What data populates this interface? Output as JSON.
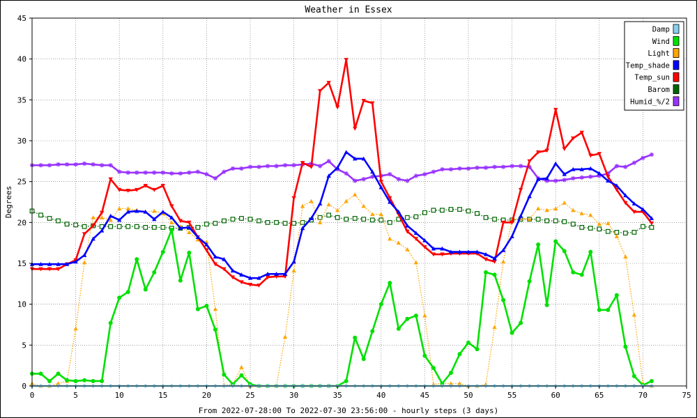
{
  "chart_data": {
    "type": "line",
    "title": "Weather in Essex",
    "xlabel": "From 2022-07-28:00 To 2022-07-30 23:56:00 - hourly steps (3 days)",
    "ylabel": "Degrees",
    "xlim": [
      0,
      75
    ],
    "ylim": [
      0,
      45
    ],
    "x_ticks": [
      0,
      5,
      10,
      15,
      20,
      25,
      30,
      35,
      40,
      45,
      50,
      55,
      60,
      65,
      70,
      75
    ],
    "y_ticks": [
      0,
      5,
      10,
      15,
      20,
      25,
      30,
      35,
      40,
      45
    ],
    "grid": true,
    "legend_position": "top-right",
    "series": [
      {
        "name": "Damp",
        "color": "#87ceeb",
        "marker": "diamond",
        "dash": "solid",
        "values": [
          0,
          0,
          0,
          0,
          0,
          0,
          0,
          0,
          0,
          0,
          0,
          0,
          0,
          0,
          0,
          0,
          0,
          0,
          0,
          0,
          0,
          0,
          0,
          0,
          0,
          0,
          0,
          0,
          0,
          0,
          0,
          0,
          0,
          0,
          0,
          0,
          0,
          0,
          0,
          0,
          0,
          0,
          0,
          0,
          0,
          0,
          0,
          0,
          0,
          0,
          0,
          0,
          0,
          0,
          0,
          0,
          0,
          0,
          0,
          0,
          0,
          0,
          0,
          0,
          0,
          0,
          0,
          0,
          0,
          0,
          0,
          0
        ]
      },
      {
        "name": "Wind",
        "color": "#00e000",
        "marker": "circle",
        "dash": "solid",
        "values": [
          1.5,
          1.5,
          0.6,
          1.5,
          0.7,
          0.6,
          0.7,
          0.6,
          0.6,
          7.7,
          10.8,
          11.5,
          15.5,
          11.8,
          13.9,
          16.4,
          19.1,
          12.9,
          16.3,
          9.4,
          9.8,
          6.9,
          1.4,
          0.2,
          1.3,
          0.2,
          0,
          0,
          0,
          0,
          0,
          0,
          0,
          0,
          0,
          0,
          0.6,
          5.9,
          3.3,
          6.7,
          10.0,
          12.6,
          7.0,
          8.2,
          8.6,
          3.7,
          2.2,
          0.3,
          1.6,
          3.9,
          5.3,
          4.5,
          13.9,
          13.6,
          10.5,
          6.5,
          7.7,
          12.8,
          17.3,
          9.9,
          17.7,
          16.5,
          13.9,
          13.6,
          16.4,
          9.3,
          9.3,
          11.1,
          4.8,
          1.2,
          0.1,
          0.6
        ]
      },
      {
        "name": "Light",
        "color": "#ffa500",
        "marker": "triangle-up",
        "dash": "dotted",
        "values": [
          0.3,
          0,
          0,
          0.3,
          0.6,
          7.0,
          15.1,
          20.6,
          20.6,
          20.3,
          21.7,
          21.7,
          21.5,
          21.3,
          21.4,
          21.1,
          20.0,
          19.5,
          18.8,
          17.9,
          17.6,
          9.4,
          0.1,
          0.2,
          2.3,
          0,
          0,
          0,
          0,
          6.0,
          14.1,
          22.0,
          22.6,
          20.0,
          22.2,
          21.5,
          22.6,
          23.4,
          22.0,
          21.0,
          21.0,
          18.0,
          17.5,
          16.7,
          15.1,
          8.6,
          0.2,
          0.3,
          0.3,
          0.3,
          0,
          0,
          0.2,
          7.2,
          15.2,
          20.3,
          20.5,
          20.4,
          21.7,
          21.5,
          21.7,
          22.4,
          21.5,
          21.1,
          20.9,
          19.8,
          19.9,
          18.3,
          15.8,
          8.7,
          0.3,
          0
        ]
      },
      {
        "name": "Temp_shade",
        "color": "#0000ff",
        "marker": "triangle-up",
        "dash": "solid",
        "values": [
          14.9,
          14.9,
          14.9,
          14.9,
          14.9,
          15.2,
          16.0,
          18.0,
          19.0,
          20.8,
          20.3,
          21.3,
          21.4,
          21.3,
          20.4,
          21.3,
          20.6,
          19.3,
          19.4,
          18.2,
          17.3,
          15.8,
          15.5,
          14.1,
          13.6,
          13.2,
          13.2,
          13.7,
          13.7,
          13.7,
          15.2,
          19.3,
          20.5,
          22.3,
          25.7,
          26.7,
          28.6,
          27.8,
          27.8,
          26.2,
          24.3,
          22.5,
          21.3,
          19.6,
          18.7,
          17.8,
          16.8,
          16.8,
          16.4,
          16.4,
          16.4,
          16.4,
          16.1,
          15.6,
          16.6,
          18.3,
          20.8,
          23.2,
          25.3,
          25.4,
          27.2,
          25.9,
          26.5,
          26.5,
          26.6,
          26.0,
          25.1,
          24.5,
          23.3,
          22.3,
          21.6,
          20.5
        ]
      },
      {
        "name": "Temp_sun",
        "color": "#ff0000",
        "marker": "triangle-down",
        "dash": "solid",
        "values": [
          14.3,
          14.3,
          14.3,
          14.3,
          14.9,
          15.4,
          18.6,
          19.6,
          21.2,
          25.3,
          24.0,
          23.9,
          24.0,
          24.5,
          24.0,
          24.5,
          22.0,
          20.2,
          20.0,
          18.2,
          16.6,
          14.9,
          14.3,
          13.3,
          12.7,
          12.4,
          12.3,
          13.3,
          13.4,
          13.4,
          23.0,
          27.3,
          26.8,
          36.1,
          37.1,
          34.1,
          39.9,
          31.5,
          34.9,
          34.6,
          25.0,
          23.0,
          21.0,
          18.9,
          18.0,
          17.0,
          16.1,
          16.1,
          16.2,
          16.2,
          16.2,
          16.2,
          15.5,
          15.2,
          20.0,
          20.0,
          24.0,
          27.5,
          28.6,
          28.8,
          33.8,
          29.0,
          30.3,
          31.0,
          28.2,
          28.4,
          25.6,
          24.0,
          22.4,
          21.3,
          21.3,
          19.9
        ]
      },
      {
        "name": "Barom",
        "color": "#006400",
        "marker": "square-open",
        "dash": "dotted",
        "values": [
          21.4,
          20.9,
          20.5,
          20.2,
          19.8,
          19.7,
          19.5,
          19.6,
          19.5,
          19.5,
          19.5,
          19.5,
          19.5,
          19.4,
          19.4,
          19.4,
          19.3,
          19.3,
          19.4,
          19.4,
          19.8,
          19.9,
          20.2,
          20.4,
          20.5,
          20.4,
          20.2,
          20.0,
          20.0,
          19.9,
          19.9,
          20.0,
          20.3,
          20.6,
          20.9,
          20.6,
          20.4,
          20.5,
          20.4,
          20.3,
          20.3,
          20.0,
          20.4,
          20.6,
          20.7,
          21.2,
          21.5,
          21.5,
          21.6,
          21.6,
          21.4,
          21.1,
          20.6,
          20.4,
          20.3,
          20.3,
          20.4,
          20.4,
          20.4,
          20.2,
          20.2,
          20.1,
          19.8,
          19.4,
          19.3,
          19.2,
          18.9,
          18.8,
          18.7,
          18.8,
          19.5,
          19.4
        ]
      },
      {
        "name": "Humid_%/2",
        "color": "#9933ff",
        "marker": "star",
        "dash": "solid",
        "values": [
          27.0,
          27.0,
          27.0,
          27.1,
          27.1,
          27.1,
          27.2,
          27.1,
          27.0,
          27.0,
          26.2,
          26.1,
          26.1,
          26.1,
          26.1,
          26.1,
          26.0,
          26.0,
          26.1,
          26.2,
          25.9,
          25.4,
          26.2,
          26.6,
          26.6,
          26.8,
          26.8,
          26.9,
          26.9,
          27.0,
          27.0,
          27.1,
          27.2,
          26.9,
          27.5,
          26.5,
          26.0,
          25.1,
          25.3,
          25.6,
          25.7,
          25.9,
          25.3,
          25.1,
          25.7,
          25.9,
          26.2,
          26.5,
          26.5,
          26.6,
          26.6,
          26.7,
          26.7,
          26.8,
          26.8,
          26.9,
          26.9,
          26.8,
          25.4,
          25.1,
          25.1,
          25.2,
          25.4,
          25.5,
          25.6,
          25.7,
          26.0,
          26.9,
          26.8,
          27.3,
          27.9,
          28.3
        ]
      }
    ]
  }
}
